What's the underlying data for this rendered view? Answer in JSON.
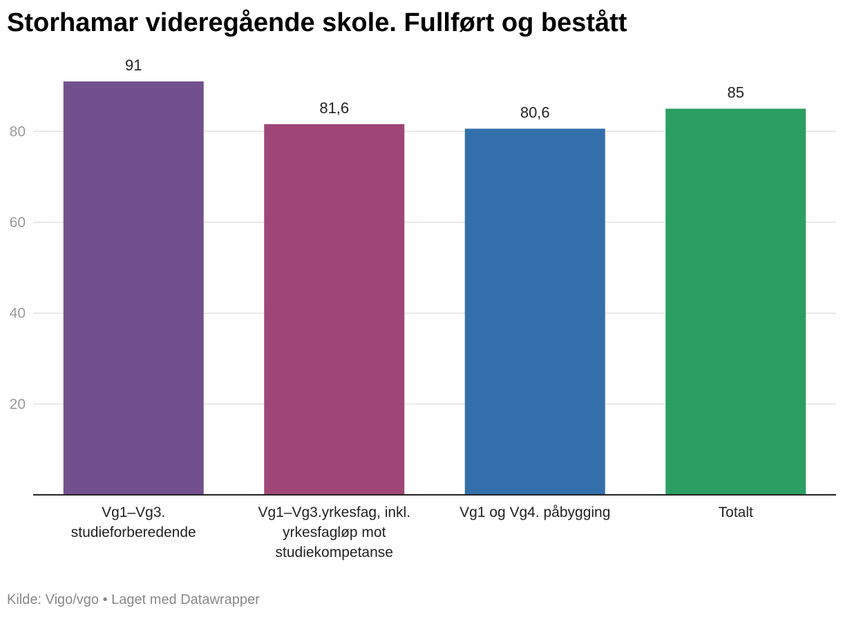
{
  "chart_data": {
    "type": "bar",
    "title": "Storhamar videregående skole. Fullført og bestått",
    "categories": [
      [
        "Vg1–Vg3.",
        "studieforberedende"
      ],
      [
        "Vg1–Vg3.yrkesfag, inkl.",
        "yrkesfagløp mot",
        "studiekompetanse"
      ],
      [
        "Vg1 og Vg4. påbygging"
      ],
      [
        "Totalt"
      ]
    ],
    "values": [
      91,
      81.6,
      80.6,
      85
    ],
    "value_labels": [
      "91",
      "81,6",
      "80,6",
      "85"
    ],
    "colors": [
      "#72508e",
      "#a04677",
      "#336fab",
      "#2a9f61"
    ],
    "ylim": [
      0,
      91
    ],
    "yticks": [
      20,
      40,
      60,
      80
    ],
    "ytick_labels": [
      "20",
      "40",
      "60",
      "80"
    ],
    "grid": true,
    "xlabel": "",
    "ylabel": ""
  },
  "footer": {
    "source": "Kilde: Vigo/vgo • Laget med Datawrapper"
  }
}
